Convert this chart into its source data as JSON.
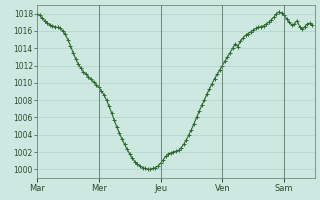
{
  "title": "",
  "xlabel": "",
  "ylabel": "",
  "bg_color": "#cce8e0",
  "plot_bg_color": "#cce8e0",
  "line_color": "#2d6a2d",
  "marker_color": "#2d6a2d",
  "grid_color": "#a8cfc4",
  "tick_label_color": "#2d4a2d",
  "ylim": [
    999,
    1019
  ],
  "yticks": [
    1000,
    1002,
    1004,
    1006,
    1008,
    1010,
    1012,
    1014,
    1016,
    1018
  ],
  "xtick_labels": [
    "Mar",
    "Mer",
    "Jeu",
    "Ven",
    "Sam"
  ],
  "xtick_positions": [
    0,
    24,
    48,
    72,
    96
  ],
  "total_hours": 108,
  "pressure_data": [
    1018.0,
    1017.8,
    1017.5,
    1017.2,
    1016.9,
    1016.7,
    1016.6,
    1016.5,
    1016.4,
    1016.3,
    1016.0,
    1015.6,
    1015.0,
    1014.3,
    1013.5,
    1012.8,
    1012.2,
    1011.7,
    1011.3,
    1011.0,
    1010.7,
    1010.4,
    1010.1,
    1009.8,
    1009.5,
    1009.1,
    1008.6,
    1008.0,
    1007.3,
    1006.5,
    1005.7,
    1004.9,
    1004.2,
    1003.5,
    1002.9,
    1002.3,
    1001.8,
    1001.3,
    1000.9,
    1000.6,
    1000.4,
    1000.2,
    1000.1,
    1000.0,
    1000.0,
    1000.1,
    1000.2,
    1000.4,
    1000.7,
    1001.1,
    1001.5,
    1001.8,
    1001.9,
    1002.0,
    1002.1,
    1002.2,
    1002.5,
    1002.9,
    1003.4,
    1004.0,
    1004.6,
    1005.3,
    1006.0,
    1006.7,
    1007.4,
    1008.0,
    1008.7,
    1009.3,
    1009.9,
    1010.5,
    1011.0,
    1011.5,
    1012.0,
    1012.5,
    1013.0,
    1013.5,
    1014.0,
    1014.5,
    1014.2,
    1014.8,
    1015.2,
    1015.5,
    1015.7,
    1015.9,
    1016.1,
    1016.3,
    1016.4,
    1016.5,
    1016.6,
    1016.8,
    1017.0,
    1017.3,
    1017.6,
    1018.0,
    1018.2,
    1018.1,
    1017.8,
    1017.4,
    1017.0,
    1016.7,
    1016.8,
    1017.2,
    1016.5,
    1016.2,
    1016.5,
    1016.8,
    1016.9,
    1016.7
  ]
}
